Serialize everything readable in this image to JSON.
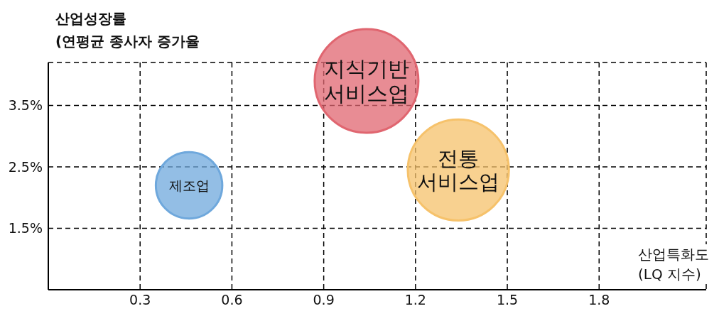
{
  "chart_data": {
    "type": "bubble",
    "xlabel": "산업특화도\n(LQ 지수)",
    "ylabel": "산업성장률\n(연평균 종사자 증가율",
    "x": [
      0.46,
      1.04,
      1.34
    ],
    "values": [
      2.2,
      3.9,
      2.45
    ],
    "sizes": [
      0.41,
      1,
      0.95
    ],
    "colors": [
      "#6fa8dc",
      "#e06670",
      "#f6c26b"
    ],
    "xlim": [
      0,
      2.15
    ],
    "xticks": [
      0.3,
      0.6,
      0.9,
      1.2,
      1.5,
      1.8
    ],
    "ylim": [
      0.5,
      4.2
    ],
    "yticks": [
      {
        "value": 1.5,
        "label": "1.5%"
      },
      {
        "value": 2.5,
        "label": "2.5%"
      },
      {
        "value": 3.5,
        "label": "3.5%"
      }
    ],
    "grid": true,
    "legend": false,
    "annotations": [
      {
        "text": "제조업",
        "x": 0.46,
        "y": 2.2
      },
      {
        "text": "지식기반\n서비스업",
        "x": 1.04,
        "y": 3.9
      },
      {
        "text": "전통\n서비스업",
        "x": 1.34,
        "y": 2.45
      }
    ]
  }
}
